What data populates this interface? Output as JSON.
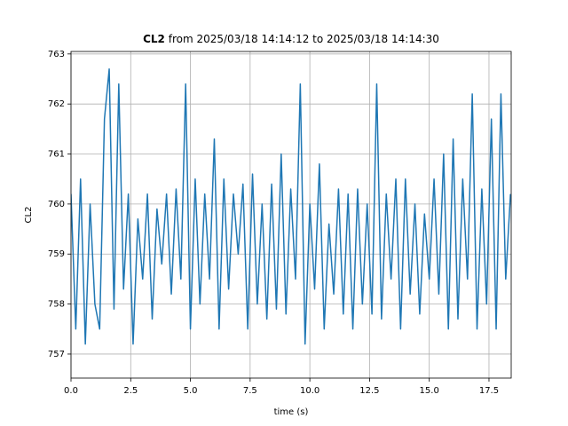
{
  "chart_data": {
    "type": "line",
    "title_bold": "CL2",
    "title": "from 2025/03/18 14:14:12 to 2025/03/18 14:14:30",
    "xlabel": "time (s)",
    "ylabel": "CL2",
    "x": [
      0,
      0.2,
      0.4,
      0.6,
      0.8,
      1,
      1.2,
      1.4,
      1.6,
      1.8,
      2,
      2.2,
      2.4,
      2.6,
      2.8,
      3,
      3.2,
      3.4,
      3.6,
      3.8,
      4,
      4.2,
      4.4,
      4.6,
      4.8,
      5,
      5.2,
      5.4,
      5.6,
      5.8,
      6,
      6.2,
      6.4,
      6.6,
      6.8,
      7,
      7.2,
      7.4,
      7.6,
      7.8,
      8,
      8.2,
      8.4,
      8.6,
      8.8,
      9,
      9.2,
      9.4,
      9.6,
      9.8,
      10,
      10.2,
      10.4,
      10.6,
      10.8,
      11,
      11.2,
      11.4,
      11.6,
      11.8,
      12,
      12.2,
      12.4,
      12.6,
      12.8,
      13,
      13.2,
      13.4,
      13.6,
      13.8,
      14,
      14.2,
      14.4,
      14.6,
      14.8,
      15,
      15.2,
      15.4,
      15.6,
      15.8,
      16,
      16.2,
      16.4,
      16.6,
      16.8,
      17,
      17.2,
      17.4,
      17.6,
      17.8,
      18,
      18.2,
      18.4
    ],
    "series": [
      {
        "name": "CL2",
        "color": "#1f77b4",
        "values": [
          760.2,
          757.5,
          760.5,
          757.2,
          760.0,
          758.0,
          757.5,
          761.7,
          762.7,
          757.9,
          762.4,
          758.3,
          760.2,
          757.2,
          759.7,
          758.5,
          760.2,
          757.7,
          759.9,
          758.8,
          760.2,
          758.2,
          760.3,
          758.5,
          762.4,
          757.5,
          760.5,
          758.0,
          760.2,
          758.5,
          761.3,
          757.5,
          760.5,
          758.3,
          760.2,
          759.0,
          760.4,
          757.5,
          760.6,
          758.0,
          760.0,
          757.7,
          760.4,
          757.9,
          761.0,
          757.8,
          760.3,
          758.5,
          762.4,
          757.2,
          760.0,
          758.3,
          760.8,
          757.5,
          759.6,
          758.2,
          760.3,
          757.8,
          760.2,
          757.5,
          760.3,
          758.0,
          760.0,
          757.8,
          762.4,
          757.7,
          760.2,
          758.5,
          760.5,
          757.5,
          760.5,
          758.2,
          760.0,
          757.8,
          759.8,
          758.5,
          760.5,
          758.2,
          761.0,
          757.5,
          761.3,
          757.7,
          760.5,
          758.5,
          762.2,
          757.5,
          760.3,
          758.0,
          761.7,
          757.5,
          762.2,
          758.5,
          760.2
        ]
      }
    ],
    "xlim": [
      0,
      18.43
    ],
    "ylim": [
      756.52,
      763.05
    ],
    "xticks": [
      {
        "value": 0,
        "label": "0.0"
      },
      2.5,
      {
        "value": 5,
        "label": "5.0"
      },
      7.5,
      {
        "value": 10,
        "label": "10.0"
      },
      12.5,
      {
        "value": 15,
        "label": "15.0"
      },
      17.5
    ],
    "yticks": [
      757,
      758,
      759,
      760,
      761,
      762,
      763
    ],
    "grid": true
  }
}
